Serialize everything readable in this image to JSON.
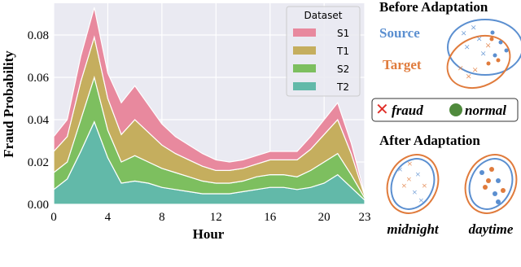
{
  "chart_data": {
    "type": "stacked-area",
    "x": [
      0,
      1,
      2,
      3,
      4,
      5,
      6,
      7,
      8,
      9,
      10,
      11,
      12,
      13,
      14,
      15,
      16,
      17,
      18,
      19,
      20,
      21,
      22,
      23
    ],
    "xlim": [
      0,
      23
    ],
    "xticks": [
      0,
      4,
      8,
      12,
      16,
      20,
      23
    ],
    "ylim": [
      0,
      0.095
    ],
    "yticks": [
      {
        "value": 0,
        "label": "0.00"
      },
      {
        "value": 0.02,
        "label": "0.02"
      },
      {
        "value": 0.04,
        "label": "0.04"
      },
      {
        "value": 0.06,
        "label": "0.06"
      },
      {
        "value": 0.08,
        "label": "0.08"
      }
    ],
    "xlabel": "Hour",
    "ylabel": "Fraud Probability",
    "legend_title": "Dataset",
    "legend": "upper right",
    "grid": true,
    "series": [
      {
        "name": "S1",
        "color": "#e8899e",
        "values": [
          0.007,
          0.008,
          0.012,
          0.014,
          0.012,
          0.015,
          0.016,
          0.013,
          0.01,
          0.008,
          0.007,
          0.006,
          0.005,
          0.004,
          0.004,
          0.004,
          0.004,
          0.004,
          0.004,
          0.006,
          0.007,
          0.008,
          0.005,
          0.001
        ]
      },
      {
        "name": "T1",
        "color": "#c5ae5e",
        "values": [
          0.01,
          0.012,
          0.018,
          0.019,
          0.015,
          0.013,
          0.017,
          0.014,
          0.011,
          0.009,
          0.008,
          0.007,
          0.006,
          0.006,
          0.006,
          0.006,
          0.007,
          0.007,
          0.008,
          0.01,
          0.013,
          0.016,
          0.01,
          0.001
        ]
      },
      {
        "name": "S2",
        "color": "#7dbf5f",
        "values": [
          0.008,
          0.008,
          0.015,
          0.021,
          0.013,
          0.01,
          0.012,
          0.01,
          0.009,
          0.008,
          0.007,
          0.006,
          0.005,
          0.005,
          0.005,
          0.006,
          0.006,
          0.006,
          0.006,
          0.008,
          0.01,
          0.01,
          0.006,
          0.001
        ]
      },
      {
        "name": "T2",
        "color": "#62b9a9",
        "values": [
          0.007,
          0.012,
          0.025,
          0.039,
          0.022,
          0.01,
          0.011,
          0.01,
          0.008,
          0.007,
          0.006,
          0.005,
          0.005,
          0.005,
          0.006,
          0.007,
          0.008,
          0.008,
          0.007,
          0.008,
          0.01,
          0.014,
          0.008,
          0.002
        ]
      }
    ]
  },
  "diagram": {
    "before_title": "Before Adaptation",
    "source": "Source",
    "target": "Target",
    "fraud": "fraud",
    "normal": "normal",
    "after_title": "After Adaptation",
    "midnight": "midnight",
    "daytime": "daytime"
  }
}
